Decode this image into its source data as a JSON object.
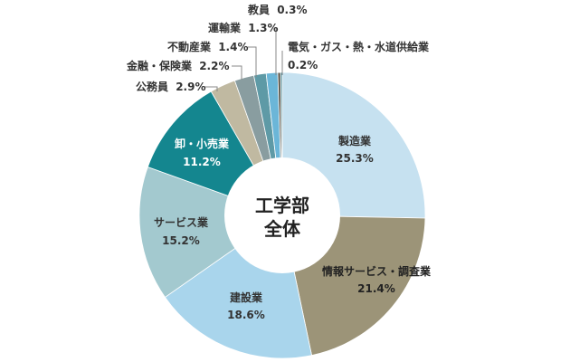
{
  "chart_data": {
    "type": "pie",
    "style": "donut",
    "center_label": [
      "工学部",
      "全体"
    ],
    "slices": [
      {
        "name": "製造業",
        "pct_label": "25.3%",
        "value": 25.3,
        "color": "#c6e1f0"
      },
      {
        "name": "情報サービス・調査業",
        "pct_label": "21.4%",
        "value": 21.4,
        "color": "#9c9478"
      },
      {
        "name": "建設業",
        "pct_label": "18.6%",
        "value": 18.6,
        "color": "#a9d5ec"
      },
      {
        "name": "サービス業",
        "pct_label": "15.2%",
        "value": 15.2,
        "color": "#a3c9cf"
      },
      {
        "name": "卸・小売業",
        "pct_label": "11.2%",
        "value": 11.2,
        "color": "#14868f"
      },
      {
        "name": "公務員",
        "pct_label": "2.9%",
        "value": 2.9,
        "color": "#c0b9a1"
      },
      {
        "name": "金融・保険業",
        "pct_label": "2.2%",
        "value": 2.2,
        "color": "#899da0"
      },
      {
        "name": "不動産業",
        "pct_label": "1.4%",
        "value": 1.4,
        "color": "#5e9aa6"
      },
      {
        "name": "運輸業",
        "pct_label": "1.3%",
        "value": 1.3,
        "color": "#6bb6d8"
      },
      {
        "name": "教員",
        "pct_label": "0.3%",
        "value": 0.3,
        "color": "#4f4a3e"
      },
      {
        "name": "電気・ガス・熱・水道供給業",
        "pct_label": "0.2%",
        "value": 0.2,
        "color": "#4a8794"
      }
    ]
  }
}
